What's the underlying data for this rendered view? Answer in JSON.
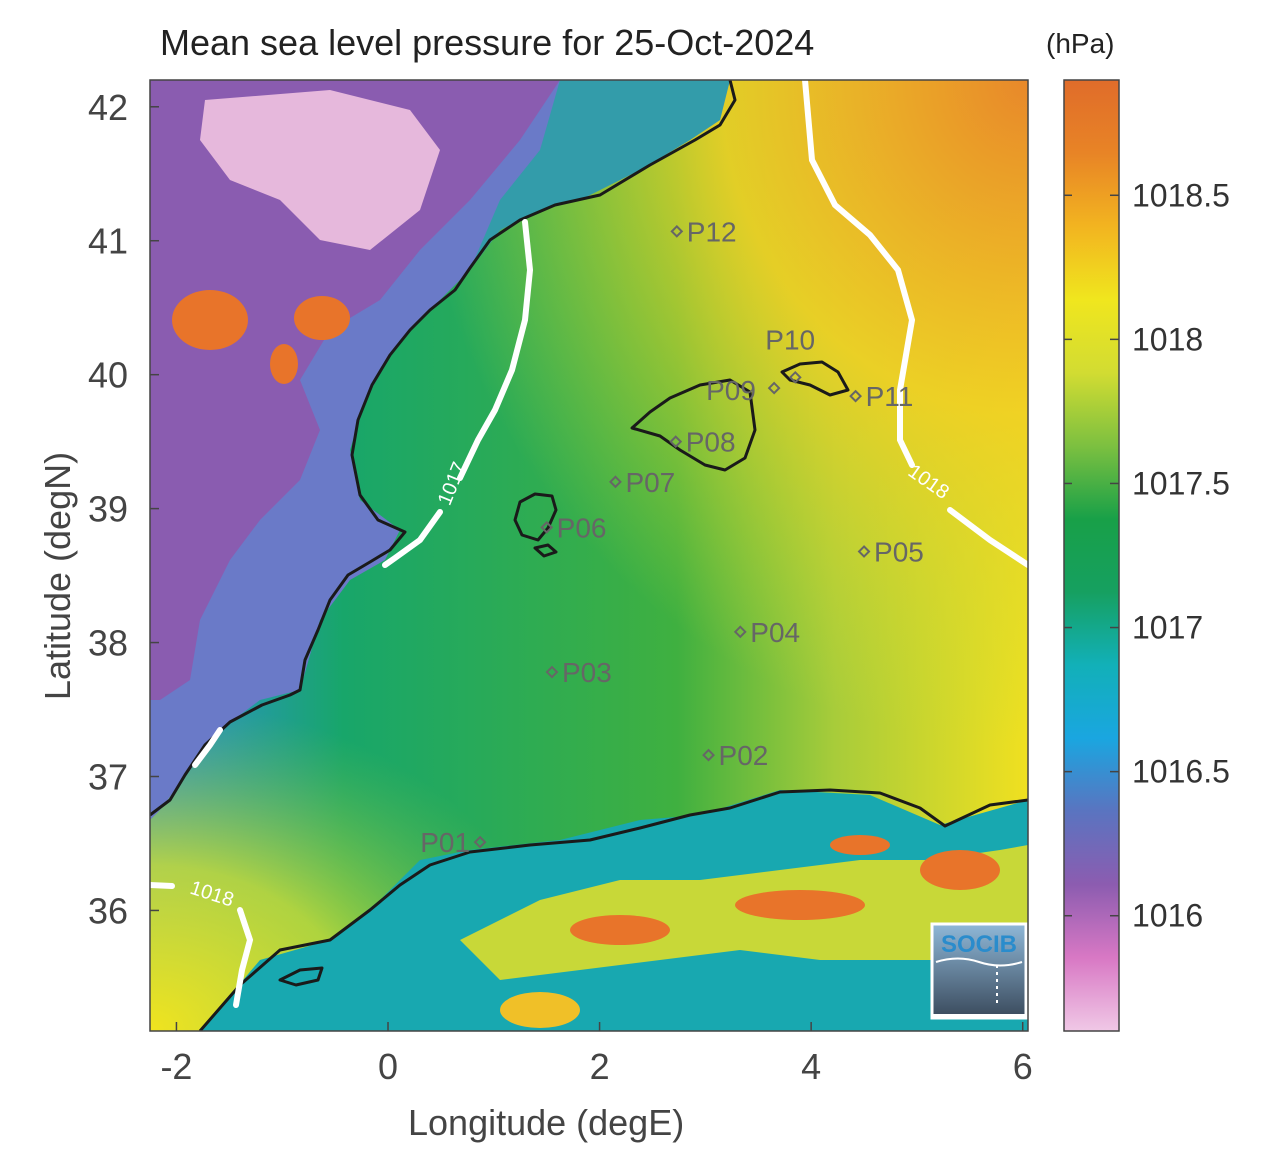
{
  "title": "Mean sea level pressure for 25-Oct-2024",
  "colorbar": {
    "unit": "(hPa)",
    "range": [
      1015.6,
      1018.9
    ],
    "ticks": [
      "1016",
      "1016.5",
      "1017",
      "1017.5",
      "1018",
      "1018.5"
    ],
    "tick_values": [
      1016,
      1016.5,
      1017,
      1017.5,
      1018,
      1018.5
    ],
    "stops": [
      "#f0c8e6",
      "#d878c4",
      "#8c5cb0",
      "#5a74c0",
      "#1aa6e0",
      "#12b0b8",
      "#16a060",
      "#18a048",
      "#7cc040",
      "#d2dc32",
      "#f0e61e",
      "#f2b420",
      "#e88426",
      "#e06c2a"
    ]
  },
  "axes": {
    "xlabel": "Longitude (degE)",
    "ylabel": "Latitude (degN)",
    "xlim": [
      -2.25,
      6.05
    ],
    "ylim": [
      35.1,
      42.2
    ],
    "xticks": [
      "-2",
      "0",
      "2",
      "4",
      "6"
    ],
    "xtick_values": [
      -2,
      0,
      2,
      4,
      6
    ],
    "yticks": [
      "36",
      "37",
      "38",
      "39",
      "40",
      "41",
      "42"
    ],
    "ytick_values": [
      36,
      37,
      38,
      39,
      40,
      41,
      42
    ]
  },
  "contours": [
    {
      "label": "1017",
      "value": 1017
    },
    {
      "label": "1018",
      "value": 1018
    }
  ],
  "stations": [
    {
      "label": "P01",
      "lon": 0.87,
      "lat": 36.51
    },
    {
      "label": "P02",
      "lon": 3.03,
      "lat": 37.16
    },
    {
      "label": "P03",
      "lon": 1.55,
      "lat": 37.78
    },
    {
      "label": "P04",
      "lon": 3.33,
      "lat": 38.08
    },
    {
      "label": "P05",
      "lon": 4.5,
      "lat": 38.68
    },
    {
      "label": "P06",
      "lon": 1.5,
      "lat": 38.86
    },
    {
      "label": "P07",
      "lon": 2.15,
      "lat": 39.2
    },
    {
      "label": "P08",
      "lon": 2.72,
      "lat": 39.5
    },
    {
      "label": "P09",
      "lon": 3.65,
      "lat": 39.9
    },
    {
      "label": "P10",
      "lon": 3.85,
      "lat": 39.98
    },
    {
      "label": "P11",
      "lon": 4.42,
      "lat": 39.84
    },
    {
      "label": "P12",
      "lon": 2.73,
      "lat": 41.07
    }
  ],
  "logo": {
    "text": "SOCIB"
  }
}
